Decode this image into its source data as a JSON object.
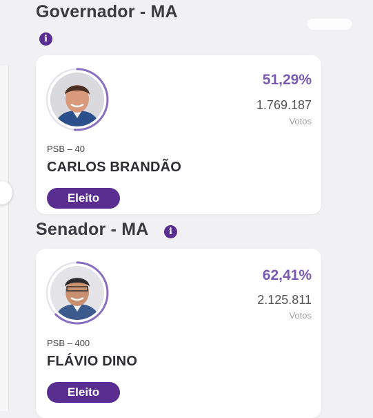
{
  "governor": {
    "title": "Governador - MA",
    "info_icon": "i",
    "candidate": {
      "percent": "51,29%",
      "votes": "1.769.187",
      "votes_label": "Votos",
      "party": "PSB – 40",
      "name": "CARLOS BRANDÃO",
      "status": "Eleito",
      "vote_share": 0.5129
    }
  },
  "senator": {
    "title": "Senador - MA",
    "info_icon": "i",
    "candidate": {
      "percent": "62,41%",
      "votes": "2.125.811",
      "votes_label": "Votos",
      "party": "PSB – 400",
      "name": "FLÁVIO DINO",
      "status": "Eleito",
      "vote_share": 0.6241
    }
  },
  "colors": {
    "accent": "#5a2d91",
    "percent_text": "#7a5ab0",
    "ring_track": "#e6e3ec",
    "background": "#f1f1f3"
  }
}
